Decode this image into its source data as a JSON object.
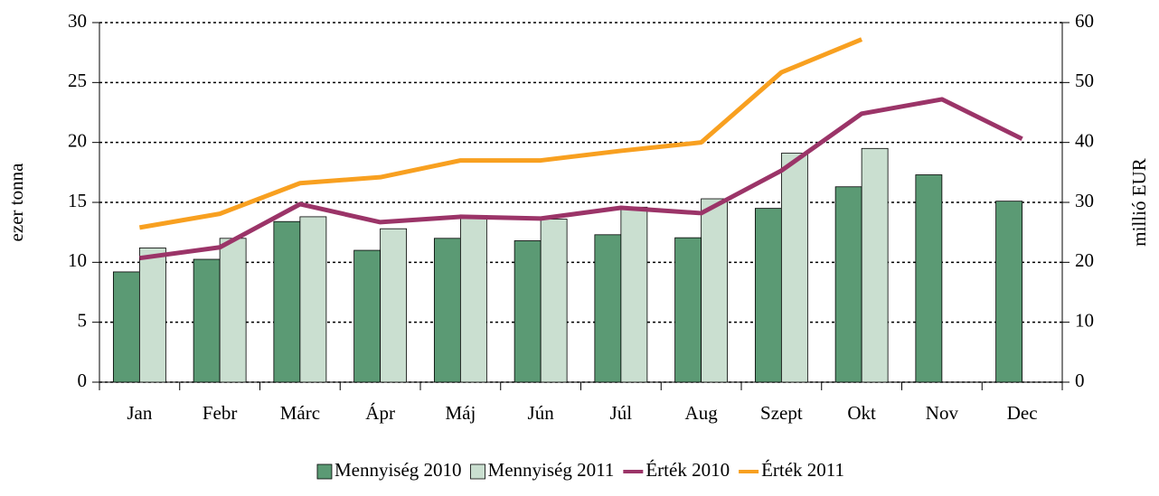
{
  "chart_data": {
    "type": "bar-line",
    "categories": [
      "Jan",
      "Febr",
      "Márc",
      "Ápr",
      "Máj",
      "Jún",
      "Júl",
      "Aug",
      "Szept",
      "Okt",
      "Nov",
      "Dec"
    ],
    "ylabel": "ezer tonna",
    "y2label": "millió EUR",
    "ylim": [
      0,
      30
    ],
    "yticks": [
      0,
      5,
      10,
      15,
      20,
      25,
      30
    ],
    "y2lim": [
      0,
      60
    ],
    "y2ticks": [
      0,
      10,
      20,
      30,
      40,
      50,
      60
    ],
    "grid": true,
    "legend": "bottom",
    "series": [
      {
        "name": "Mennyiség 2010",
        "type": "bar",
        "color": "#5b9a74",
        "values": [
          9.2,
          10.25,
          13.4,
          11.0,
          12.0,
          11.8,
          12.3,
          12.05,
          14.5,
          16.3,
          17.3,
          15.1
        ]
      },
      {
        "name": "Mennyiség 2011",
        "type": "bar",
        "color": "#cadfd0",
        "values": [
          11.2,
          12.0,
          13.8,
          12.8,
          13.9,
          13.6,
          14.6,
          15.3,
          19.1,
          19.5,
          null,
          null
        ]
      },
      {
        "name": "Érték 2010",
        "type": "line",
        "axis": "y2",
        "color": "#9b3468",
        "values": [
          20.7,
          22.5,
          29.7,
          26.7,
          27.6,
          27.3,
          29.1,
          28.2,
          35.3,
          44.8,
          47.2,
          40.6
        ]
      },
      {
        "name": "Érték 2011",
        "type": "line",
        "axis": "y2",
        "color": "#f8a020",
        "values": [
          25.8,
          28.1,
          33.2,
          34.2,
          37.0,
          37.0,
          38.6,
          40.0,
          51.7,
          57.2,
          null,
          null
        ]
      }
    ]
  }
}
